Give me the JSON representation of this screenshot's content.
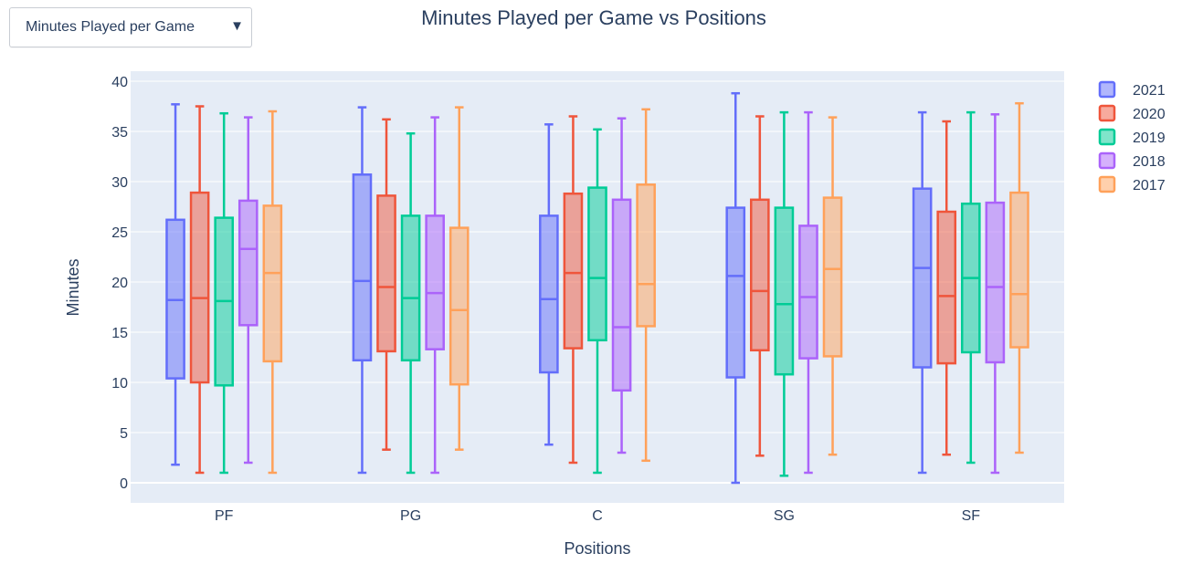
{
  "dropdown": {
    "selected": "Minutes Played per Game",
    "arrow_icon": "triangle-down-icon"
  },
  "chart_data": {
    "type": "box",
    "title": "Minutes Played per Game vs Positions",
    "xlabel": "Positions",
    "ylabel": "Minutes",
    "categories": [
      "PF",
      "PG",
      "C",
      "SG",
      "SF"
    ],
    "ylim": [
      -2,
      41
    ],
    "yticks": [
      0,
      5,
      10,
      15,
      20,
      25,
      30,
      35,
      40
    ],
    "grid": true,
    "legend_position": "top-right",
    "series": [
      {
        "name": "2021",
        "color": "#636efa",
        "boxes": [
          {
            "min": 1.8,
            "q1": 10.4,
            "median": 18.2,
            "q3": 26.2,
            "max": 37.7
          },
          {
            "min": 1.0,
            "q1": 12.2,
            "median": 20.1,
            "q3": 30.7,
            "max": 37.4
          },
          {
            "min": 3.8,
            "q1": 11.0,
            "median": 18.3,
            "q3": 26.6,
            "max": 35.7
          },
          {
            "min": 0.0,
            "q1": 10.5,
            "median": 20.6,
            "q3": 27.4,
            "max": 38.8
          },
          {
            "min": 1.0,
            "q1": 11.5,
            "median": 21.4,
            "q3": 29.3,
            "max": 36.9
          }
        ]
      },
      {
        "name": "2020",
        "color": "#ef553b",
        "boxes": [
          {
            "min": 1.0,
            "q1": 10.0,
            "median": 18.4,
            "q3": 28.9,
            "max": 37.5
          },
          {
            "min": 3.3,
            "q1": 13.1,
            "median": 19.5,
            "q3": 28.6,
            "max": 36.2
          },
          {
            "min": 2.0,
            "q1": 13.4,
            "median": 20.9,
            "q3": 28.8,
            "max": 36.5
          },
          {
            "min": 2.7,
            "q1": 13.2,
            "median": 19.1,
            "q3": 28.2,
            "max": 36.5
          },
          {
            "min": 2.8,
            "q1": 11.9,
            "median": 18.6,
            "q3": 27.0,
            "max": 36.0
          }
        ]
      },
      {
        "name": "2019",
        "color": "#00cc96",
        "boxes": [
          {
            "min": 1.0,
            "q1": 9.7,
            "median": 18.1,
            "q3": 26.4,
            "max": 36.8
          },
          {
            "min": 1.0,
            "q1": 12.2,
            "median": 18.4,
            "q3": 26.6,
            "max": 34.8
          },
          {
            "min": 1.0,
            "q1": 14.2,
            "median": 20.4,
            "q3": 29.4,
            "max": 35.2
          },
          {
            "min": 0.7,
            "q1": 10.8,
            "median": 17.8,
            "q3": 27.4,
            "max": 36.9
          },
          {
            "min": 2.0,
            "q1": 13.0,
            "median": 20.4,
            "q3": 27.8,
            "max": 36.9
          }
        ]
      },
      {
        "name": "2018",
        "color": "#ab63fa",
        "boxes": [
          {
            "min": 2.0,
            "q1": 15.7,
            "median": 23.3,
            "q3": 28.1,
            "max": 36.4
          },
          {
            "min": 1.0,
            "q1": 13.3,
            "median": 18.9,
            "q3": 26.6,
            "max": 36.4
          },
          {
            "min": 3.0,
            "q1": 9.2,
            "median": 15.5,
            "q3": 28.2,
            "max": 36.3
          },
          {
            "min": 1.0,
            "q1": 12.4,
            "median": 18.5,
            "q3": 25.6,
            "max": 36.9
          },
          {
            "min": 1.0,
            "q1": 12.0,
            "median": 19.5,
            "q3": 27.9,
            "max": 36.7
          }
        ]
      },
      {
        "name": "2017",
        "color": "#ffa15a",
        "boxes": [
          {
            "min": 1.0,
            "q1": 12.1,
            "median": 20.9,
            "q3": 27.6,
            "max": 37.0
          },
          {
            "min": 3.3,
            "q1": 9.8,
            "median": 17.2,
            "q3": 25.4,
            "max": 37.4
          },
          {
            "min": 2.2,
            "q1": 15.6,
            "median": 19.8,
            "q3": 29.7,
            "max": 37.2
          },
          {
            "min": 2.8,
            "q1": 12.6,
            "median": 21.3,
            "q3": 28.4,
            "max": 36.4
          },
          {
            "min": 3.0,
            "q1": 13.5,
            "median": 18.8,
            "q3": 28.9,
            "max": 37.8
          }
        ]
      }
    ]
  }
}
